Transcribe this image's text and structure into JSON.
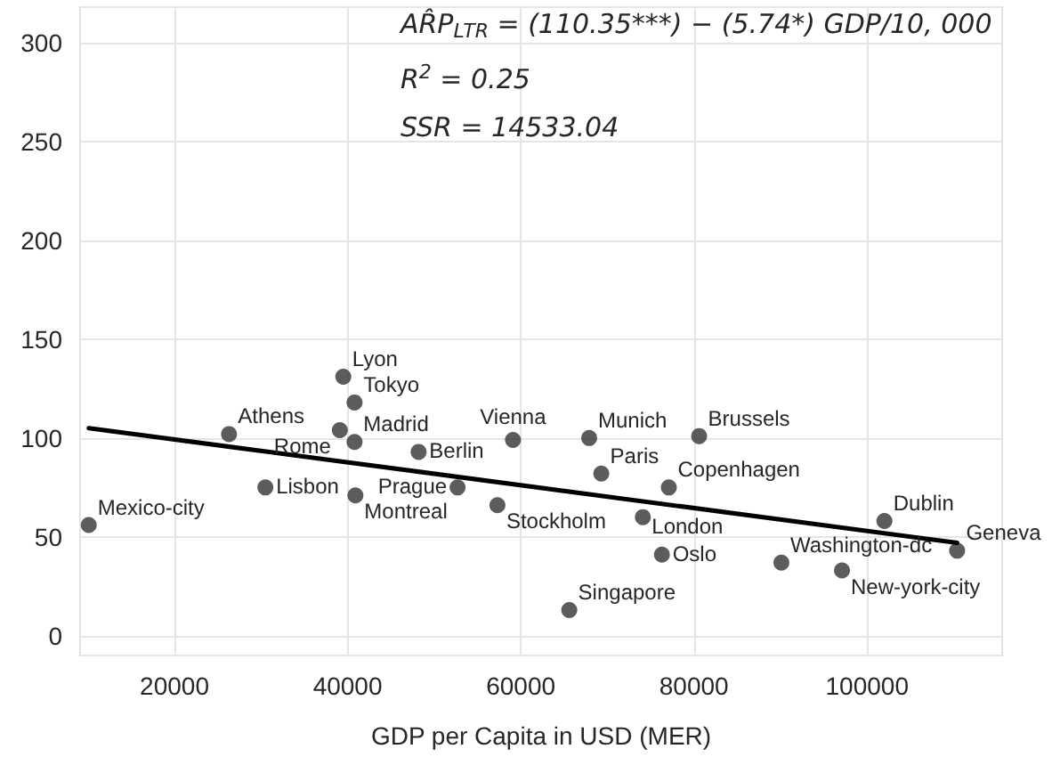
{
  "chart_data": {
    "type": "scatter",
    "xlabel": "GDP per Capita in USD (MER)",
    "xlim": [
      9100,
      115600
    ],
    "ylim": [
      -10,
      318
    ],
    "xticks": [
      20000,
      40000,
      60000,
      80000,
      100000
    ],
    "yticks": [
      0,
      50,
      100,
      150,
      200,
      250,
      300
    ],
    "grid": true,
    "marker": "circle",
    "series": [
      {
        "color": "#333333",
        "x": [
          10100,
          26300,
          30500,
          39500,
          40800,
          39100,
          40800,
          40900,
          48200,
          52700,
          57300,
          59100,
          67900,
          80600,
          69300,
          77100,
          74100,
          76300,
          65600,
          90100,
          97100,
          102000,
          110400
        ],
        "values": [
          56,
          102,
          75,
          131,
          118,
          104,
          98,
          71,
          93,
          75,
          66,
          99,
          100,
          101,
          82,
          75,
          60,
          41,
          13,
          37,
          33,
          58,
          43
        ]
      },
      {
        "type": "line",
        "color": "#000000",
        "marker": "none",
        "line_style": "solid",
        "x": [
          10100,
          110400
        ],
        "values": [
          105,
          47
        ]
      }
    ],
    "annotations": [
      "AR̂P$_{LTR}$ = (110.35***) − (5.74*) GDP/10, 000",
      "R$^{2}$ = 0.25",
      "SSR = 14533.04",
      {
        "text": "Mexico-city",
        "x": 10100,
        "y": 56
      },
      {
        "text": "Athens",
        "x": 26300,
        "y": 102
      },
      {
        "text": "Lisbon",
        "x": 30500,
        "y": 75
      },
      {
        "text": "Lyon",
        "x": 39500,
        "y": 131
      },
      {
        "text": "Tokyo",
        "x": 40800,
        "y": 118
      },
      {
        "text": "Rome",
        "x": 39100,
        "y": 104
      },
      {
        "text": "Madrid",
        "x": 40800,
        "y": 98
      },
      {
        "text": "Montreal",
        "x": 40900,
        "y": 71
      },
      {
        "text": "Berlin",
        "x": 48200,
        "y": 93
      },
      {
        "text": "Prague",
        "x": 52700,
        "y": 75
      },
      {
        "text": "Stockholm",
        "x": 57300,
        "y": 66
      },
      {
        "text": "Vienna",
        "x": 59100,
        "y": 99
      },
      {
        "text": "Munich",
        "x": 67900,
        "y": 100
      },
      {
        "text": "Brussels",
        "x": 80600,
        "y": 101
      },
      {
        "text": "Paris",
        "x": 69300,
        "y": 82
      },
      {
        "text": "Copenhagen",
        "x": 77100,
        "y": 75
      },
      {
        "text": "London",
        "x": 74100,
        "y": 60
      },
      {
        "text": "Oslo",
        "x": 76300,
        "y": 41
      },
      {
        "text": "Singapore",
        "x": 65600,
        "y": 13
      },
      {
        "text": "Washington-dc",
        "x": 90100,
        "y": 37
      },
      {
        "text": "New-york-city",
        "x": 97100,
        "y": 33
      },
      {
        "text": "Dublin",
        "x": 102000,
        "y": 58
      },
      {
        "text": "Geneva",
        "x": 110400,
        "y": 43
      }
    ]
  }
}
